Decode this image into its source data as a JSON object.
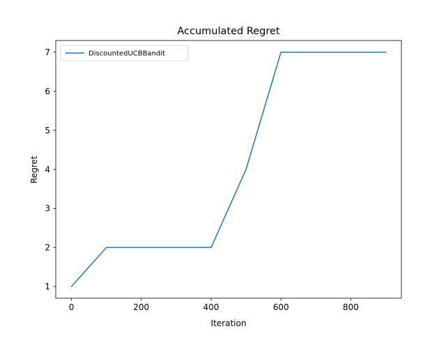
{
  "chart_data": {
    "type": "line",
    "title": "Accumulated Regret",
    "xlabel": "Iteration",
    "ylabel": "Regret",
    "xlim": [
      -45,
      945
    ],
    "ylim": [
      0.7,
      7.3
    ],
    "xticks": [
      0,
      200,
      400,
      600,
      800
    ],
    "xtick_labels": [
      "0",
      "200",
      "400",
      "600",
      "800"
    ],
    "yticks": [
      1,
      2,
      3,
      4,
      5,
      6,
      7
    ],
    "ytick_labels": [
      "1",
      "2",
      "3",
      "4",
      "5",
      "6",
      "7"
    ],
    "grid": false,
    "legend_position": "upper-left",
    "series": [
      {
        "name": "DiscountedUCBBandit",
        "color": "#1f77b4",
        "x": [
          0,
          100,
          200,
          300,
          400,
          500,
          600,
          700,
          800,
          900
        ],
        "y": [
          1,
          2,
          2,
          2,
          2,
          4,
          7,
          7,
          7,
          7
        ]
      }
    ]
  }
}
